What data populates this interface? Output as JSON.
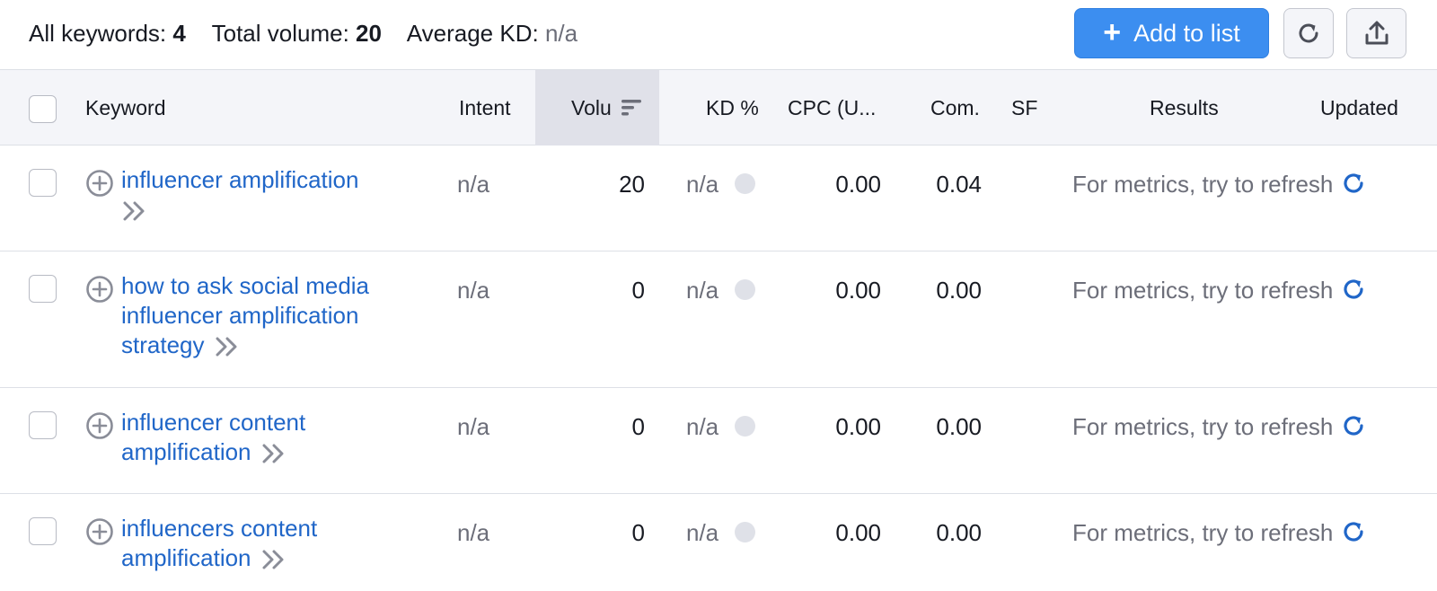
{
  "summary": {
    "all_keywords_label": "All keywords:",
    "all_keywords_value": "4",
    "total_volume_label": "Total volume:",
    "total_volume_value": "20",
    "average_kd_label": "Average KD:",
    "average_kd_value": "n/a"
  },
  "toolbar": {
    "add_to_list_label": "Add to list",
    "add_icon": "plus-icon",
    "refresh_icon": "refresh-icon",
    "export_icon": "export-icon"
  },
  "columns": {
    "keyword": "Keyword",
    "intent": "Intent",
    "volume": "Volu",
    "kd": "KD %",
    "cpc": "CPC (U...",
    "com": "Com.",
    "sf": "SF",
    "results": "Results",
    "updated": "Updated"
  },
  "rows": [
    {
      "keyword": "influencer amplification",
      "intent": "n/a",
      "volume": "20",
      "kd": "n/a",
      "cpc": "0.00",
      "com": "0.04",
      "results": "For metrics, try to refresh"
    },
    {
      "keyword": "how to ask social media influencer amplification strategy",
      "intent": "n/a",
      "volume": "0",
      "kd": "n/a",
      "cpc": "0.00",
      "com": "0.00",
      "results": "For metrics, try to refresh"
    },
    {
      "keyword": "influencer content amplification",
      "intent": "n/a",
      "volume": "0",
      "kd": "n/a",
      "cpc": "0.00",
      "com": "0.00",
      "results": "For metrics, try to refresh"
    },
    {
      "keyword": "influencers content amplification",
      "intent": "n/a",
      "volume": "0",
      "kd": "n/a",
      "cpc": "0.00",
      "com": "0.00",
      "results": "For metrics, try to refresh"
    }
  ],
  "colors": {
    "accent": "#3c8ef0",
    "link": "#2066c8",
    "header_bg": "#f4f5f9",
    "sorted_header_bg": "#e0e1e9",
    "muted_text": "#6c6e79"
  }
}
